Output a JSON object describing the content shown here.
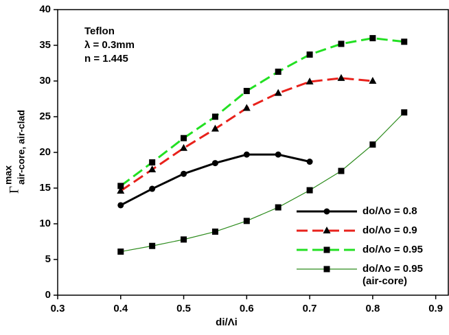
{
  "chart_data": {
    "type": "line",
    "annotation": [
      "Teflon",
      "λ = 0.3mm",
      "n = 1.445"
    ],
    "xlabel": "di/Λi",
    "ylabel": "Γ",
    "ylabel_sup": "max",
    "ylabel_sub": "air-core, air-clad",
    "xlim": [
      0.3,
      0.92
    ],
    "xticks": [
      0.3,
      0.4,
      0.5,
      0.6,
      0.7,
      0.8,
      0.9
    ],
    "ylim": [
      0,
      40
    ],
    "yticks": [
      0,
      5,
      10,
      15,
      20,
      25,
      30,
      35,
      40
    ],
    "legend": "lower right",
    "series": [
      {
        "name": "do/Λo = 0.8",
        "color": "#000000",
        "marker": "circle",
        "dash": "solid",
        "width": 3,
        "x": [
          0.4,
          0.45,
          0.5,
          0.55,
          0.6,
          0.65,
          0.7
        ],
        "values": [
          12.6,
          14.9,
          17.0,
          18.5,
          19.7,
          19.7,
          18.7
        ]
      },
      {
        "name": "do/Λo = 0.9",
        "color": "#e8211b",
        "marker": "triangle",
        "dash": "dashed",
        "width": 3,
        "x": [
          0.4,
          0.45,
          0.5,
          0.55,
          0.6,
          0.65,
          0.7,
          0.75,
          0.8
        ],
        "values": [
          14.6,
          17.6,
          20.6,
          23.3,
          26.2,
          28.3,
          29.9,
          30.4,
          30.0
        ]
      },
      {
        "name": "do/Λo = 0.95",
        "color": "#22e022",
        "marker": "square",
        "dash": "dashed",
        "width": 3,
        "x": [
          0.4,
          0.45,
          0.5,
          0.55,
          0.6,
          0.65,
          0.7,
          0.75,
          0.8,
          0.85
        ],
        "values": [
          15.3,
          18.6,
          22.0,
          25.0,
          28.6,
          31.3,
          33.7,
          35.2,
          36.0,
          35.5
        ]
      },
      {
        "name": "do/Λo = 0.95\n(air-core)",
        "color": "#2a8a1a",
        "marker": "square",
        "dash": "solid",
        "width": 1.2,
        "x": [
          0.4,
          0.45,
          0.5,
          0.55,
          0.6,
          0.65,
          0.7,
          0.75,
          0.8,
          0.85
        ],
        "values": [
          6.1,
          6.9,
          7.8,
          8.9,
          10.4,
          12.3,
          14.7,
          17.4,
          21.1,
          25.6
        ]
      }
    ]
  }
}
